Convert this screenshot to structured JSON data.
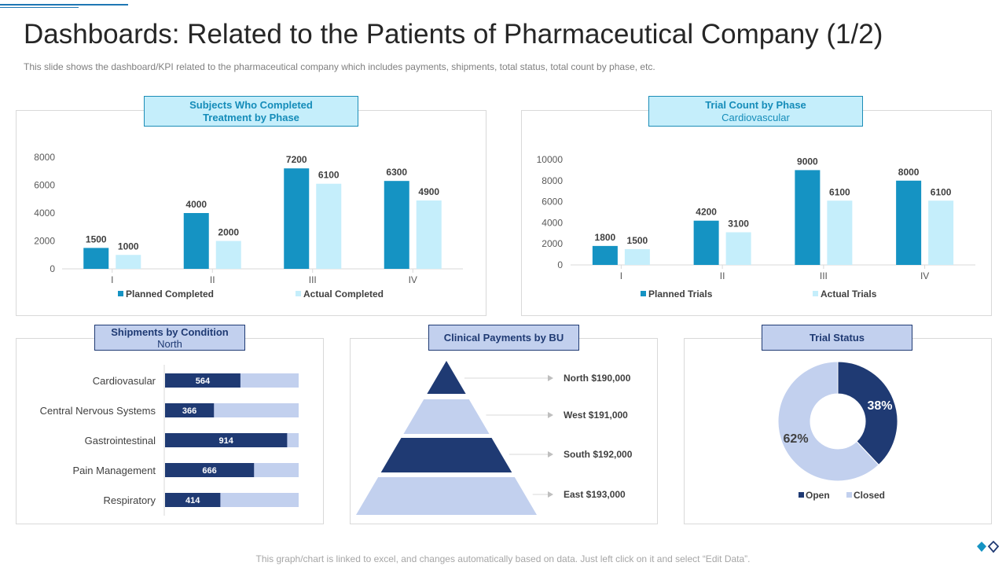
{
  "title": "Dashboards: Related to the Patients of Pharmaceutical Company (1/2)",
  "subtitle": "This slide shows the dashboard/KPI related to the pharmaceutical  company which includes payments, shipments, total status, total count by phase, etc.",
  "footer": "This graph/chart is linked to excel,  and changes automatically based on data. Just left click on it and select “Edit Data”.",
  "colors": {
    "planned": "#1593c3",
    "actual": "#c5eefb",
    "dark": "#1f3a73",
    "light": "#c2d0ee"
  },
  "panels": {
    "subjects": {
      "title_line1": "Subjects Who Completed",
      "title_line2": "Treatment by Phase"
    },
    "trial_count": {
      "title": "Trial Count by Phase",
      "subtitle": "Cardiovascular"
    },
    "shipments": {
      "title": "Shipments by Condition",
      "subtitle": "North"
    },
    "payments": {
      "title": "Clinical Payments by BU"
    },
    "trial_status": {
      "title": "Trial Status"
    }
  },
  "chart_data": [
    {
      "id": "subjects",
      "type": "bar",
      "title": "Subjects Who Completed Treatment by Phase",
      "categories": [
        "I",
        "II",
        "III",
        "IV"
      ],
      "series": [
        {
          "name": "Planned Completed",
          "values": [
            1500,
            4000,
            7200,
            6300
          ]
        },
        {
          "name": "Actual Completed",
          "values": [
            1000,
            2000,
            6100,
            4900
          ]
        }
      ],
      "yticks": [
        "0",
        "2000",
        "4000",
        "6000",
        "8000"
      ],
      "ylim": [
        0,
        8000
      ],
      "legend": "bottom"
    },
    {
      "id": "trial_count",
      "type": "bar",
      "title": "Trial Count by Phase",
      "subtitle": "Cardiovascular",
      "categories": [
        "I",
        "II",
        "III",
        "IV"
      ],
      "series": [
        {
          "name": "Planned Trials",
          "values": [
            1800,
            4200,
            9000,
            8000
          ]
        },
        {
          "name": "Actual Trials",
          "values": [
            1500,
            3100,
            6100,
            6100
          ]
        }
      ],
      "yticks": [
        "0",
        "2000",
        "4000",
        "6000",
        "8000",
        "10000"
      ],
      "ylim": [
        0,
        10000
      ],
      "legend": "bottom"
    },
    {
      "id": "shipments",
      "type": "bar",
      "orientation": "horizontal",
      "title": "Shipments by Condition",
      "subtitle": "North",
      "categories": [
        "Cardiovasular",
        "Central Nervous Systems",
        "Gastrointestinal",
        "Pain Management",
        "Respiratory"
      ],
      "values": [
        564,
        366,
        914,
        666,
        414
      ],
      "max": 1000
    },
    {
      "id": "payments",
      "type": "pyramid",
      "title": "Clinical Payments by BU",
      "labels": [
        "North $190,000",
        "West $191,000",
        "South $192,000",
        "East $193,000"
      ],
      "values": [
        190000,
        191000,
        192000,
        193000
      ]
    },
    {
      "id": "trial_status",
      "type": "pie",
      "variant": "donut",
      "title": "Trial Status",
      "categories": [
        "Open",
        "Closed"
      ],
      "values": [
        38,
        62
      ],
      "labels": [
        "38%",
        "62%"
      ],
      "legend": "bottom"
    }
  ]
}
